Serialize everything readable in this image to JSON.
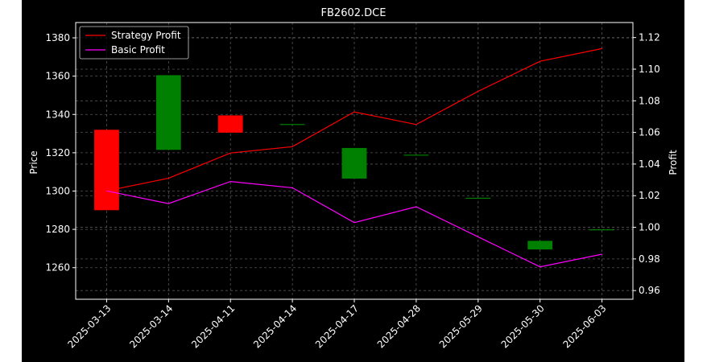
{
  "chart_data": {
    "type": "candlestick",
    "title": "FB2602.DCE",
    "xlabel": "",
    "ylabel_left": "Price",
    "ylabel_right": "Profit",
    "categories": [
      "2025-03-13",
      "2025-03-14",
      "2025-04-11",
      "2025-04-14",
      "2025-04-17",
      "2025-04-28",
      "2025-05-29",
      "2025-05-30",
      "2025-06-03"
    ],
    "candles": [
      {
        "open": 1332,
        "close": 1290
      },
      {
        "open": 1321.5,
        "close": 1360.5
      },
      {
        "open": 1339.5,
        "close": 1330.5
      },
      {
        "open": 1335,
        "close": 1335
      },
      {
        "open": 1306.5,
        "close": 1322.5
      },
      {
        "open": 1319,
        "close": 1319
      },
      {
        "open": 1296.5,
        "close": 1296.5
      },
      {
        "open": 1269.5,
        "close": 1274
      },
      {
        "open": 1280,
        "close": 1280
      }
    ],
    "series": [
      {
        "name": "Strategy Profit",
        "color": "#ff0000",
        "axis": "right",
        "values": [
          1.023,
          1.031,
          1.047,
          1.051,
          1.073,
          1.065,
          1.086,
          1.105,
          1.113
        ]
      },
      {
        "name": "Basic Profit",
        "color": "#ff00ff",
        "axis": "right",
        "values": [
          1.023,
          1.015,
          1.029,
          1.025,
          1.003,
          1.013,
          0.994,
          0.975,
          0.983
        ]
      }
    ],
    "y_left": {
      "ticks": [
        1260,
        1280,
        1300,
        1320,
        1340,
        1360,
        1380
      ],
      "range": [
        1243.5,
        1388
      ]
    },
    "y_right": {
      "ticks": [
        "0.96",
        "0.98",
        "1.00",
        "1.02",
        "1.04",
        "1.06",
        "1.08",
        "1.10",
        "1.12"
      ],
      "range": [
        0.9545,
        1.1295
      ]
    },
    "legend_position": "top-left",
    "grid": true,
    "colors": {
      "up": "#008000",
      "down": "#ff0000",
      "background": "#000000",
      "grid": "#555555"
    }
  }
}
